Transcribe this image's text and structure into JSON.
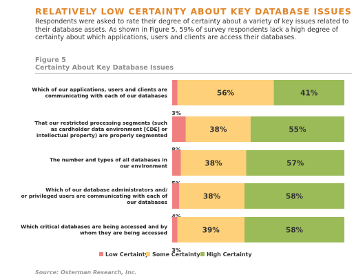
{
  "heading": "RELATIVELY LOW CERTAINTY ABOUT KEY DATABASE ISSUES",
  "intro": "Respondents were asked to rate their degree of certainty about a variety of key issues related to their database assets. As shown in Figure 5, 59% of survey respondents lack a high degree of certainty about which applications, users and clients are access their databases.",
  "figure_label": "Figure 5",
  "figure_title": "Certainty About Key Database Issues",
  "source": "Source: Osterman Research, Inc.",
  "chart_data": {
    "type": "bar",
    "orientation": "horizontal",
    "stacked": true,
    "title": "Certainty About Key Database Issues",
    "categories": [
      [
        "Which of our applications, users and clients are",
        "communicating with each of our databases"
      ],
      [
        "That our restricted processing segments (such",
        "as cardholder data environment [CDE] or",
        "intellectual property) are properly segmented"
      ],
      [
        "The number and types of all databases in",
        "our environment"
      ],
      [
        "Which of our database administrators and/",
        "or privileged users are communicating with each of",
        "our databases"
      ],
      [
        "Which critical databases are being accessed and by",
        "whom they are being accessed"
      ]
    ],
    "series": [
      {
        "name": "Low Certainty",
        "color": "#f08080",
        "values": [
          3,
          8,
          5,
          4,
          3
        ]
      },
      {
        "name": "Some Certainty",
        "color": "#fdd079",
        "values": [
          56,
          38,
          38,
          38,
          39
        ]
      },
      {
        "name": "High Certainty",
        "color": "#9bbb59",
        "values": [
          41,
          55,
          57,
          58,
          58
        ]
      }
    ],
    "value_format": "percent",
    "legend_position": "bottom"
  }
}
